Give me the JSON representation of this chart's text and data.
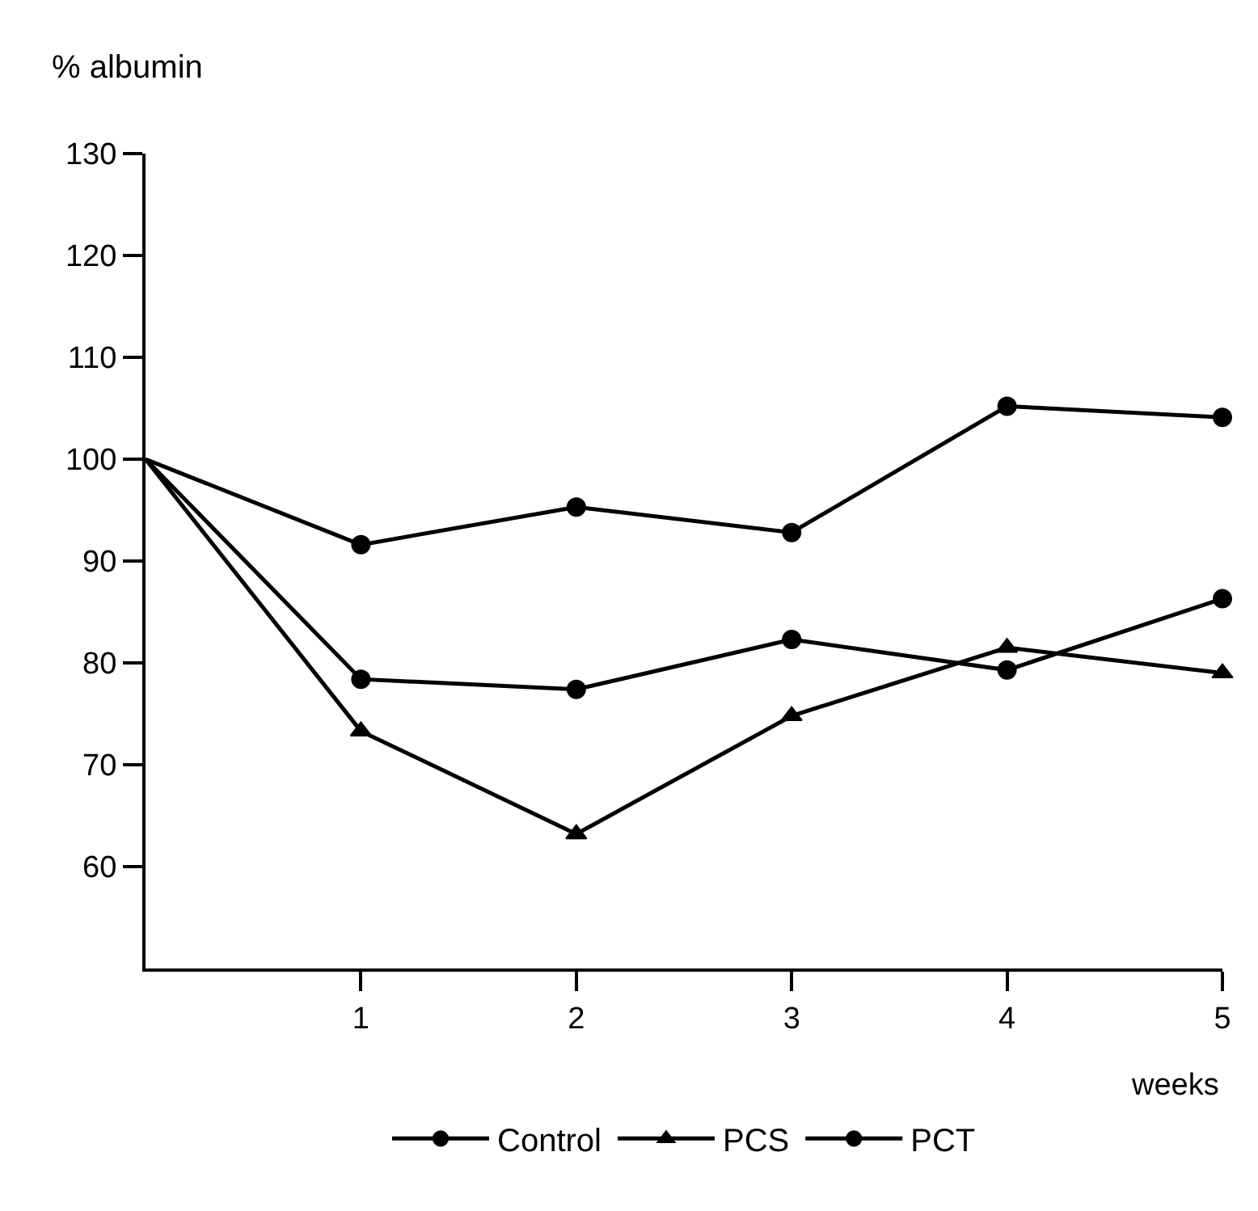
{
  "chart_data": {
    "type": "line",
    "xlabel": "weeks",
    "ylabel": "% albumin",
    "xlim": [
      0,
      5
    ],
    "xticks": [
      1,
      2,
      3,
      4,
      5
    ],
    "ylim": [
      50,
      130
    ],
    "yticks": [
      60,
      70,
      80,
      90,
      100,
      110,
      120,
      130
    ],
    "legend": "bottom",
    "line_style": "solid",
    "x": [
      0,
      1,
      2,
      3,
      4,
      5
    ],
    "series": [
      {
        "name": "Control",
        "color": "#000000",
        "marker": "circle",
        "values": [
          100,
          91.6,
          95.3,
          92.8,
          105.2,
          104.1
        ]
      },
      {
        "name": "PCS",
        "color": "#000000",
        "marker": "triangle",
        "values": [
          100,
          73.3,
          63.2,
          74.8,
          81.5,
          79.0
        ]
      },
      {
        "name": "PCT",
        "color": "#000000",
        "marker": "circle",
        "values": [
          100,
          78.4,
          77.4,
          82.3,
          79.3,
          86.3
        ]
      }
    ]
  }
}
